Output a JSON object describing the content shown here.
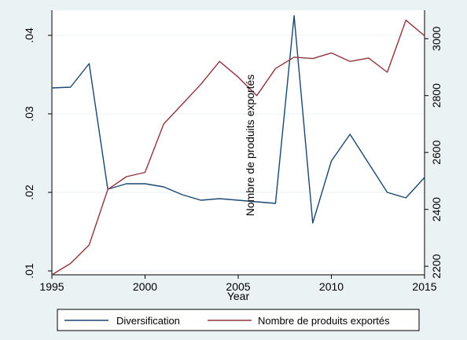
{
  "chart_data": {
    "type": "line",
    "title": "",
    "xlabel": "Year",
    "ylabel_right_overlay": "Nombre de produits exportés",
    "x": [
      1995,
      1996,
      1997,
      1998,
      1999,
      2000,
      2001,
      2002,
      2003,
      2004,
      2005,
      2006,
      2007,
      2008,
      2009,
      2010,
      2011,
      2012,
      2013,
      2014,
      2015
    ],
    "x_ticks": [
      1995,
      2000,
      2005,
      2010,
      2015
    ],
    "xlim": [
      1995,
      2015
    ],
    "y_left_ticks": [
      ".01",
      ".02",
      ".03",
      ".04"
    ],
    "y_left_tick_values": [
      0.01,
      0.02,
      0.03,
      0.04
    ],
    "ylim_left": [
      0.0095,
      0.0432
    ],
    "y_right_ticks": [
      "2200",
      "2400",
      "2600",
      "2800",
      "3000"
    ],
    "y_right_tick_values": [
      2200,
      2400,
      2600,
      2800,
      3000
    ],
    "ylim_right": [
      2170,
      3100
    ],
    "grid": "horizontal",
    "legend_position": "bottom",
    "series": [
      {
        "name": "Diversification",
        "axis": "left",
        "color": "#1a476f",
        "values": [
          0.0333,
          0.0334,
          0.0364,
          0.0204,
          0.0211,
          0.0211,
          0.0207,
          0.0197,
          0.019,
          0.0192,
          0.019,
          0.0188,
          0.0186,
          0.0425,
          0.0161,
          0.024,
          0.0274,
          0.0237,
          0.02,
          0.0193,
          0.0219
        ]
      },
      {
        "name": "Nombre de produits exportés",
        "axis": "right",
        "color": "#90353b",
        "values": [
          2170,
          2210,
          2275,
          2470,
          2515,
          2530,
          2700,
          2770,
          2840,
          2920,
          2865,
          2800,
          2895,
          2935,
          2930,
          2950,
          2920,
          2932,
          2882,
          3065,
          3010
        ]
      }
    ]
  }
}
